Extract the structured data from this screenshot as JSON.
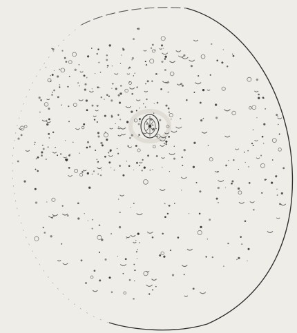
{
  "illustration": {
    "background_color": "#eeede7",
    "ink_color": "#2f2f2f",
    "boundary_icon": "circular-boundary",
    "nucleus_icon": "central-nucleus",
    "specks_icon": "scattered-specks"
  }
}
